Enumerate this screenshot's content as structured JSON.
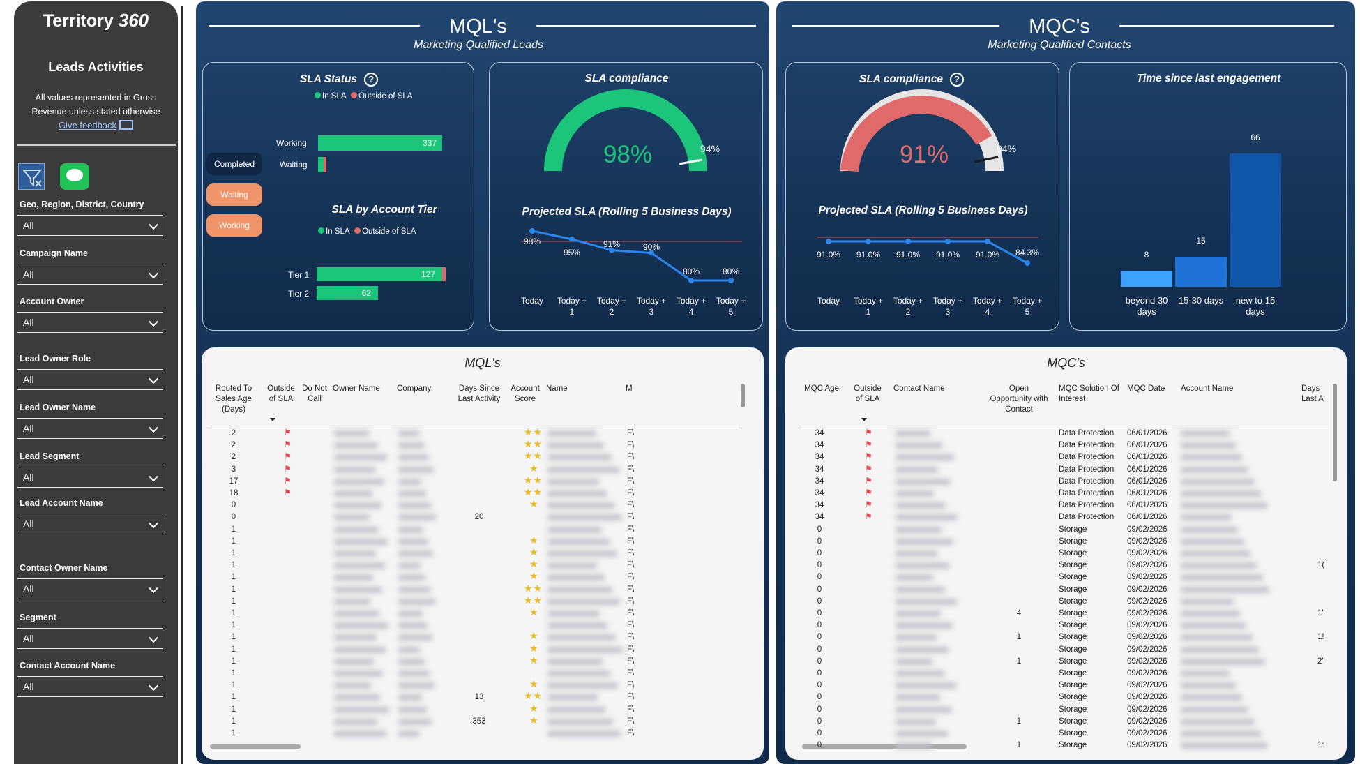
{
  "sidebar": {
    "brand": "Territory",
    "brand_suffix": "360",
    "title": "Leads Activities",
    "note": "All values represented in Gross Revenue unless stated otherwise",
    "feedback": "Give feedback",
    "filters": [
      {
        "label": "Geo, Region, District, Country",
        "value": "All"
      },
      {
        "label": "Campaign Name",
        "value": "All"
      },
      {
        "label": "Account Owner",
        "value": "All"
      },
      {
        "label": "Lead Owner Role",
        "value": "All"
      },
      {
        "label": "Lead Owner Name",
        "value": "All"
      },
      {
        "label": "Lead Segment",
        "value": "All"
      },
      {
        "label": "Lead Account Name",
        "value": "All"
      },
      {
        "label": "Contact Owner Name",
        "value": "All"
      },
      {
        "label": "Segment",
        "value": "All"
      },
      {
        "label": "Contact Account Name",
        "value": "All"
      }
    ]
  },
  "mql": {
    "title": "MQL's",
    "subtitle": "Marketing Qualified Leads",
    "sla_status": {
      "title": "SLA Status",
      "legend_in": "In SLA",
      "legend_out": "Outside of SLA",
      "bars": [
        {
          "label": "Working",
          "value": "337"
        },
        {
          "label": "Waiting",
          "value": ""
        }
      ],
      "pills": [
        "Completed",
        "Waiting",
        "Working"
      ]
    },
    "sla_tier": {
      "title": "SLA by Account Tier",
      "legend_in": "In SLA",
      "legend_out": "Outside of SLA",
      "bars": [
        {
          "label": "Tier 1",
          "value": "127"
        },
        {
          "label": "Tier 2",
          "value": "62"
        }
      ]
    },
    "compliance": {
      "title": "SLA compliance",
      "value": "98%",
      "target": "94%"
    },
    "projected": {
      "title": "Projected SLA (Rolling 5 Business Days)",
      "points": [
        "98%",
        "95%",
        "91%",
        "90%",
        "80%",
        "80%"
      ],
      "xlabels": [
        [
          "Today",
          ""
        ],
        [
          "Today +",
          "1"
        ],
        [
          "Today +",
          "2"
        ],
        [
          "Today +",
          "3"
        ],
        [
          "Today +",
          "4"
        ],
        [
          "Today +",
          "5"
        ]
      ]
    },
    "table": {
      "title": "MQL's",
      "headers": [
        "Routed To Sales Age (Days)",
        "Outside of SLA",
        "Do Not Call",
        "Owner Name",
        "Company",
        "Days Since Last Activity",
        "Account Score",
        "Name",
        "M"
      ],
      "ages": [
        "2",
        "2",
        "2",
        "3",
        "17",
        "18",
        "0",
        "0",
        "1",
        "1",
        "1",
        "1",
        "1",
        "1",
        "1",
        "1",
        "1",
        "1",
        "1",
        "1",
        "1",
        "1",
        "1",
        "1",
        "1",
        "1"
      ],
      "days_since": {
        "7": "20",
        "22": "13",
        "24": "353"
      },
      "flag_rows": [
        0,
        1,
        2,
        3,
        4,
        5
      ],
      "stars": [
        2,
        2,
        2,
        1,
        2,
        2,
        1,
        0,
        0,
        1,
        1,
        1,
        1,
        2,
        2,
        1,
        0,
        1,
        1,
        1,
        0,
        1,
        2,
        1,
        1,
        0
      ],
      "last_col": "F\\"
    }
  },
  "mqc": {
    "title": "MQC's",
    "subtitle": "Marketing Qualified Contacts",
    "compliance": {
      "title": "SLA compliance",
      "value": "91%",
      "target": "94%"
    },
    "projected": {
      "title": "Projected SLA (Rolling 5 Business Days)",
      "points": [
        "91.0%",
        "91.0%",
        "91.0%",
        "91.0%",
        "91.0%",
        "84.3%"
      ],
      "xlabels": [
        [
          "Today",
          ""
        ],
        [
          "Today +",
          "1"
        ],
        [
          "Today +",
          "2"
        ],
        [
          "Today +",
          "3"
        ],
        [
          "Today +",
          "4"
        ],
        [
          "Today +",
          "5"
        ]
      ]
    },
    "engagement": {
      "title": "Time since last engagement",
      "bars": [
        {
          "label": [
            "beyond 30",
            "days"
          ],
          "value": "8"
        },
        {
          "label": [
            "15-30 days",
            ""
          ],
          "value": "15"
        },
        {
          "label": [
            "new to 15",
            "days"
          ],
          "value": "66"
        }
      ]
    },
    "table": {
      "title": "MQC's",
      "headers": [
        "MQC Age",
        "Outside of SLA",
        "Contact Name",
        "Open Opportunity with Contact",
        "MQC Solution Of Interest",
        "MQC Date",
        "Account Name",
        "Days Last A"
      ],
      "ages": [
        "34",
        "34",
        "34",
        "34",
        "34",
        "34",
        "34",
        "34",
        "0",
        "0",
        "0",
        "0",
        "0",
        "0",
        "0",
        "0",
        "0",
        "0",
        "0",
        "0",
        "0",
        "0",
        "0",
        "0",
        "0",
        "0",
        "0"
      ],
      "flag_rows": [
        0,
        1,
        2,
        3,
        4,
        5,
        6,
        7
      ],
      "opp": {
        "15": "4",
        "17": "1",
        "19": "1",
        "24": "1",
        "26": "1"
      },
      "solutions": [
        "Data Protection",
        "Data Protection",
        "Data Protection",
        "Data Protection",
        "Data Protection",
        "Data Protection",
        "Data Protection",
        "Data Protection",
        "Storage",
        "Storage",
        "Storage",
        "Storage",
        "Storage",
        "Storage",
        "Storage",
        "Storage",
        "Storage",
        "Storage",
        "Storage",
        "Storage",
        "Storage",
        "Storage",
        "Storage",
        "Storage",
        "Storage",
        "Storage",
        "Storage"
      ],
      "dates": [
        "06/01/2026",
        "06/01/2026",
        "06/01/2026",
        "06/01/2026",
        "06/01/2026",
        "06/01/2026",
        "06/01/2026",
        "06/01/2026",
        "09/02/2026",
        "09/02/2026",
        "09/02/2026",
        "09/02/2026",
        "09/02/2026",
        "09/02/2026",
        "09/02/2026",
        "09/02/2026",
        "09/02/2026",
        "09/02/2026",
        "09/02/2026",
        "09/02/2026",
        "09/02/2026",
        "09/02/2026",
        "09/02/2026",
        "09/02/2026",
        "09/02/2026",
        "09/02/2026",
        "09/02/2026"
      ],
      "last_days": {
        "11": "1(",
        "15": "1'",
        "17": "1!",
        "19": "2'",
        "26": "1:"
      }
    }
  },
  "colors": {
    "green": "#1dc57a",
    "red": "#e06a6a",
    "blue_line": "#2b86e8",
    "orange_pill": "#f0956a",
    "dark_pill": "#0f2744"
  }
}
